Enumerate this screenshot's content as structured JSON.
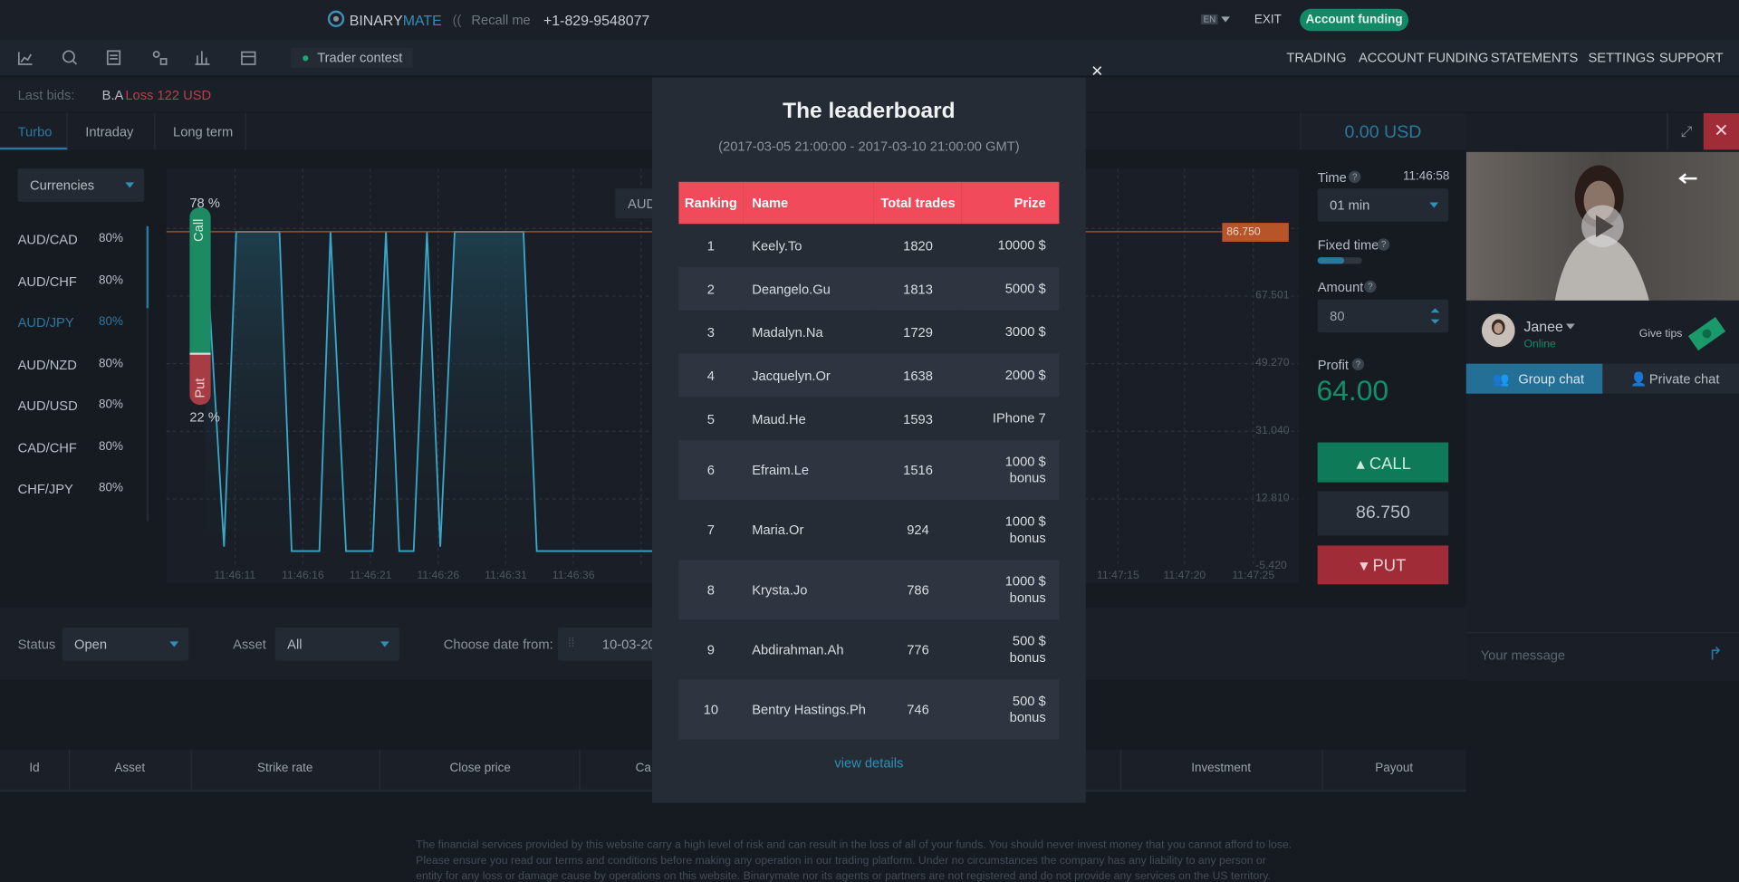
{
  "header": {
    "logo_a": "BINARY",
    "logo_b": "MATE",
    "recall": "Recall me",
    "phone": "+1-829-9548077",
    "lang": "EN",
    "exit": "EXIT",
    "funding": "Account funding"
  },
  "toolbar": {
    "contest": "Trader contest",
    "nav": [
      "TRADING",
      "ACCOUNT FUNDING",
      "STATEMENTS",
      "SETTINGS",
      "SUPPORT"
    ]
  },
  "last_bids": {
    "label": "Last bids:",
    "user": "B.A",
    "result": "Loss 122 USD"
  },
  "tabs": [
    "Turbo",
    "Intraday",
    "Long term"
  ],
  "balance": "0.00 USD",
  "assets": {
    "filter": "Currencies",
    "items": [
      {
        "name": "AUD/CAD",
        "payout": "80%"
      },
      {
        "name": "AUD/CHF",
        "payout": "80%"
      },
      {
        "name": "AUD/JPY",
        "payout": "80%"
      },
      {
        "name": "AUD/NZD",
        "payout": "80%"
      },
      {
        "name": "AUD/USD",
        "payout": "80%"
      },
      {
        "name": "CAD/CHF",
        "payout": "80%"
      },
      {
        "name": "CHF/JPY",
        "payout": "80%"
      }
    ]
  },
  "chart": {
    "call_pct": "78 %",
    "put_pct": "22 %",
    "call": "Call",
    "put": "Put",
    "asset": "AUD",
    "price": "86.750",
    "y_labels": [
      "67.501",
      "49.270",
      "31.040",
      "12.810",
      "-5.420"
    ],
    "x_labels": [
      "11:46:11",
      "11:46:16",
      "11:46:21",
      "11:46:26",
      "11:46:31",
      "11:46:36",
      "11:47:15",
      "11:47:20",
      "11:47:25"
    ]
  },
  "trade": {
    "time_label": "Time",
    "clock": "11:46:58",
    "duration": "01 min",
    "fixed_time": "Fixed time",
    "amount_label": "Amount",
    "amount": "80",
    "profit_label": "Profit",
    "profit": "64.00",
    "call": "CALL",
    "price": "86.750",
    "put": "PUT"
  },
  "chat": {
    "user": "Janee",
    "status": "Online",
    "tips": "Give tips",
    "group": "Group chat",
    "private": "Private chat",
    "placeholder": "Your message"
  },
  "filters": {
    "status_label": "Status",
    "status": "Open",
    "asset_label": "Asset",
    "asset": "All",
    "date_label": "Choose date from:",
    "date": "10-03-20"
  },
  "history": {
    "columns": [
      "Id",
      "Asset",
      "Strike rate",
      "Close price",
      "Ca",
      "Investment",
      "Payout"
    ]
  },
  "disclaimer": [
    "The financial services provided by this website carry a high level of risk and can result in the loss of all of your funds. You should never invest money that you cannot afford to lose.",
    "Please ensure you read our terms and conditions before making any operation in our trading platform. Under no circumstances the company has any liability to any person or",
    "entity for any loss or damage cause by operations on this website. Binarymate nor its agents or partners are not registered and do not provide any services on the US territory."
  ],
  "leaderboard": {
    "close": "×",
    "title": "The leaderboard",
    "period": "(2017-03-05 21:00:00 - 2017-03-10 21:00:00 GMT)",
    "columns": [
      "Ranking",
      "Name",
      "Total trades",
      "Prize"
    ],
    "rows": [
      [
        1,
        "Keely.To",
        1820,
        "10000 $"
      ],
      [
        2,
        "Deangelo.Gu",
        1813,
        "5000 $"
      ],
      [
        3,
        "Madalyn.Na",
        1729,
        "3000 $"
      ],
      [
        4,
        "Jacquelyn.Or",
        1638,
        "2000 $"
      ],
      [
        5,
        "Maud.He",
        1593,
        "IPhone 7"
      ],
      [
        6,
        "Efraim.Le",
        1516,
        "1000 $ bonus"
      ],
      [
        7,
        "Maria.Or",
        924,
        "1000 $ bonus"
      ],
      [
        8,
        "Krysta.Jo",
        786,
        "1000 $ bonus"
      ],
      [
        9,
        "Abdirahman.Ah",
        776,
        "500 $ bonus"
      ],
      [
        10,
        "Bentry Hastings.Ph",
        746,
        "500 $ bonus"
      ]
    ],
    "details": "view details"
  }
}
